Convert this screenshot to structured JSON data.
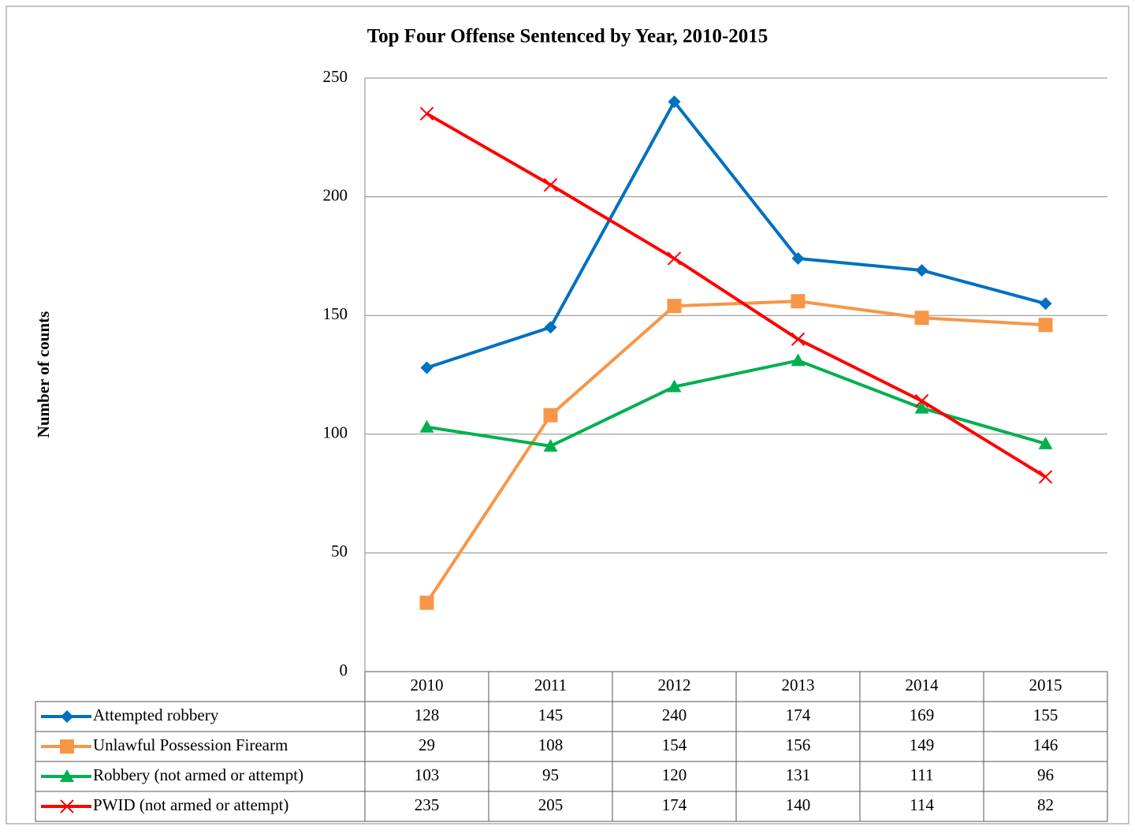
{
  "chart_data": {
    "type": "line",
    "title": "Top Four Offense  Sentenced by Year, 2010-2015",
    "y_label": "Number of counts",
    "categories": [
      "2010",
      "2011",
      "2012",
      "2013",
      "2014",
      "2015"
    ],
    "series": [
      {
        "name": "Attempted robbery",
        "color": "#0070c0",
        "marker": "diamond",
        "values": [
          128,
          145,
          240,
          174,
          169,
          155
        ]
      },
      {
        "name": "Unlawful Possession Firearm",
        "color": "#f79646",
        "marker": "square",
        "values": [
          29,
          108,
          154,
          156,
          149,
          146
        ]
      },
      {
        "name": "Robbery (not armed or attempt)",
        "color": "#00b050",
        "marker": "triangle",
        "values": [
          103,
          95,
          120,
          131,
          111,
          96
        ]
      },
      {
        "name": "PWID (not armed or attempt)",
        "color": "#ff0000",
        "marker": "x",
        "values": [
          235,
          205,
          174,
          140,
          114,
          82
        ]
      }
    ],
    "ylim": [
      0,
      250
    ],
    "yticks": [
      0,
      50,
      100,
      150,
      200,
      250
    ],
    "grid": true
  }
}
